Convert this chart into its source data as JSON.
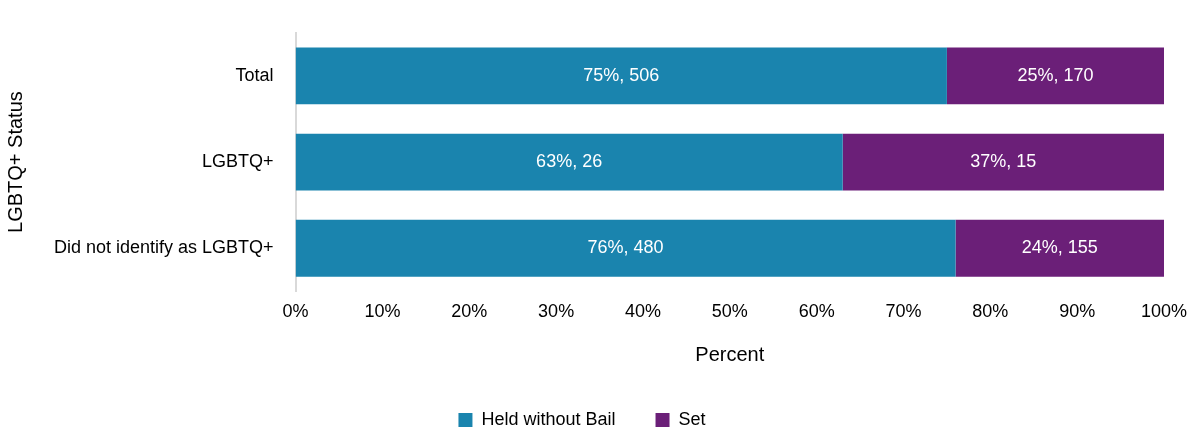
{
  "chart_data": {
    "type": "bar",
    "orientation": "horizontal",
    "stacked": true,
    "xlabel": "Percent",
    "ylabel": "LGBTQ+ Status",
    "categories": [
      "Total",
      "LGBTQ+",
      "Did not identify as LGBTQ+"
    ],
    "series": [
      {
        "name": "Held without Bail",
        "color": "#1a84ae",
        "values": [
          75,
          63,
          76
        ],
        "value_labels": [
          "75%, 506",
          "63%, 26",
          "76%, 480"
        ]
      },
      {
        "name": "Set",
        "color": "#6b1f78",
        "values": [
          25,
          37,
          24
        ],
        "value_labels": [
          "25%, 170",
          "37%, 15",
          "24%, 155"
        ]
      }
    ],
    "xlim": [
      0,
      100
    ],
    "xticks": [
      {
        "value": 0,
        "label": "0%"
      },
      {
        "value": 10,
        "label": "10%"
      },
      {
        "value": 20,
        "label": "20%"
      },
      {
        "value": 30,
        "label": "30%"
      },
      {
        "value": 40,
        "label": "40%"
      },
      {
        "value": 50,
        "label": "50%"
      },
      {
        "value": 60,
        "label": "60%"
      },
      {
        "value": 70,
        "label": "70%"
      },
      {
        "value": 80,
        "label": "80%"
      },
      {
        "value": 90,
        "label": "90%"
      },
      {
        "value": 100,
        "label": "100%"
      }
    ],
    "grid": false,
    "legend": "bottom"
  }
}
